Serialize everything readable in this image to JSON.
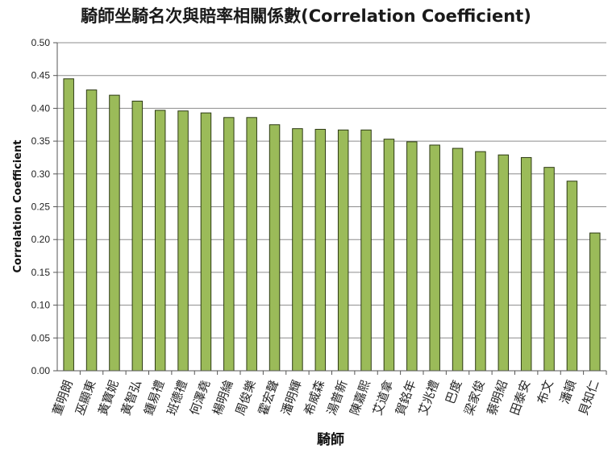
{
  "chart_data": {
    "type": "bar",
    "title": "騎師坐騎名次與賠率相關係數(Correlation Coefficient)",
    "xlabel": "騎師",
    "ylabel": "Correlation Coefficient",
    "ylim": [
      0,
      0.5
    ],
    "y_ticks": [
      "0.00",
      "0.05",
      "0.10",
      "0.15",
      "0.20",
      "0.25",
      "0.30",
      "0.35",
      "0.40",
      "0.45",
      "0.50"
    ],
    "grid": true,
    "legend": "none",
    "bar_color": "#9bbb59",
    "bar_border_color": "#2d3a14",
    "categories": [
      "董明朗",
      "巫顯東",
      "黃寶妮",
      "黃智弘",
      "鍾易禮",
      "班德禮",
      "何澤堯",
      "楊明綸",
      "周俊樂",
      "霍宏聲",
      "潘明輝",
      "希威森",
      "湯普新",
      "陳嘉熙",
      "艾道拿",
      "賀銘年",
      "艾兆禮",
      "巴度",
      "梁家俊",
      "蔡明紹",
      "田泰安",
      "布文",
      "潘頓",
      "貝知仁"
    ],
    "values": [
      0.445,
      0.428,
      0.42,
      0.411,
      0.397,
      0.396,
      0.393,
      0.386,
      0.386,
      0.375,
      0.369,
      0.368,
      0.367,
      0.367,
      0.353,
      0.349,
      0.344,
      0.339,
      0.334,
      0.329,
      0.325,
      0.31,
      0.289,
      0.21
    ]
  }
}
